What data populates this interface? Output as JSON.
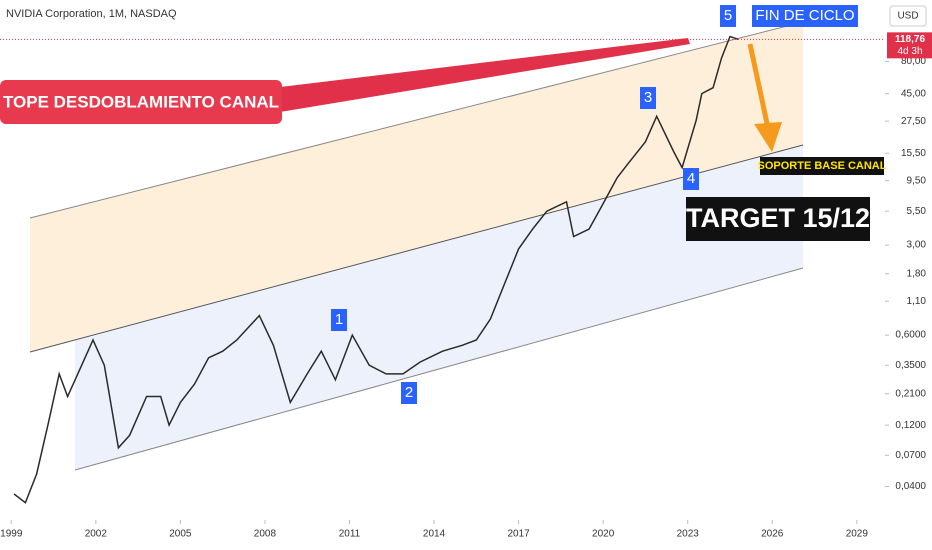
{
  "chart_data": {
    "type": "line",
    "title": "NVIDIA Corporation, 1M, NASDAQ",
    "currency": "USD",
    "log_scale": true,
    "color": "#2b2b2b",
    "x": [
      1999.1,
      1999.5,
      1999.9,
      2000.3,
      2000.7,
      2001.0,
      2001.5,
      2001.9,
      2002.3,
      2002.8,
      2003.2,
      2003.8,
      2004.3,
      2004.6,
      2005.0,
      2005.5,
      2006.0,
      2006.5,
      2007.0,
      2007.8,
      2008.3,
      2008.9,
      2009.5,
      2010.0,
      2010.5,
      2011.1,
      2011.7,
      2012.3,
      2012.9,
      2013.5,
      2014.3,
      2015.0,
      2015.5,
      2016.0,
      2016.5,
      2017.0,
      2017.5,
      2018.0,
      2018.7,
      2018.95,
      2019.5,
      2019.95,
      2020.5,
      2020.9,
      2021.5,
      2021.9,
      2022.5,
      2022.8,
      2023.3,
      2023.5,
      2023.9,
      2024.2,
      2024.5,
      2024.8
    ],
    "values": [
      0.035,
      0.03,
      0.05,
      0.12,
      0.3,
      0.2,
      0.35,
      0.55,
      0.35,
      0.08,
      0.1,
      0.2,
      0.2,
      0.12,
      0.18,
      0.25,
      0.4,
      0.45,
      0.55,
      0.85,
      0.5,
      0.18,
      0.3,
      0.45,
      0.27,
      0.6,
      0.35,
      0.3,
      0.3,
      0.37,
      0.45,
      0.5,
      0.55,
      0.8,
      1.5,
      2.8,
      4,
      5.5,
      6.5,
      3.5,
      4,
      6,
      10,
      13,
      19,
      30,
      16,
      12,
      28,
      45,
      50,
      85,
      125,
      118.76
    ],
    "last_price": {
      "value": 118.76,
      "label": "118,76"
    },
    "countdown": "4d 3h",
    "xlim": [
      1998.6,
      2030
    ],
    "xticks": [
      1999,
      2002,
      2005,
      2008,
      2011,
      2014,
      2017,
      2020,
      2023,
      2026,
      2029
    ],
    "ylim": [
      0.022,
      240
    ],
    "yticks": [
      {
        "value": 0.04,
        "label": "0,0400"
      },
      {
        "value": 0.07,
        "label": "0,0700"
      },
      {
        "value": 0.12,
        "label": "0,1200"
      },
      {
        "value": 0.21,
        "label": "0,2100"
      },
      {
        "value": 0.35,
        "label": "0,3500"
      },
      {
        "value": 0.6,
        "label": "0,6000"
      },
      {
        "value": 1.1,
        "label": "1,10"
      },
      {
        "value": 1.8,
        "label": "1,80"
      },
      {
        "value": 3,
        "label": "3,00"
      },
      {
        "value": 5.5,
        "label": "5,50"
      },
      {
        "value": 9.5,
        "label": "9,50"
      },
      {
        "value": 15.5,
        "label": "15,50"
      },
      {
        "value": 27.5,
        "label": "27,50"
      },
      {
        "value": 45,
        "label": "45,00"
      },
      {
        "value": 80,
        "label": "80,00"
      }
    ],
    "annotations": [
      "TOPE DESDOBLAMIENTO CANAL",
      "FIN DE CICLO",
      "SOPORTE BASE CANAL",
      "TARGET 15/12",
      "1",
      "2",
      "3",
      "4",
      "5"
    ]
  }
}
